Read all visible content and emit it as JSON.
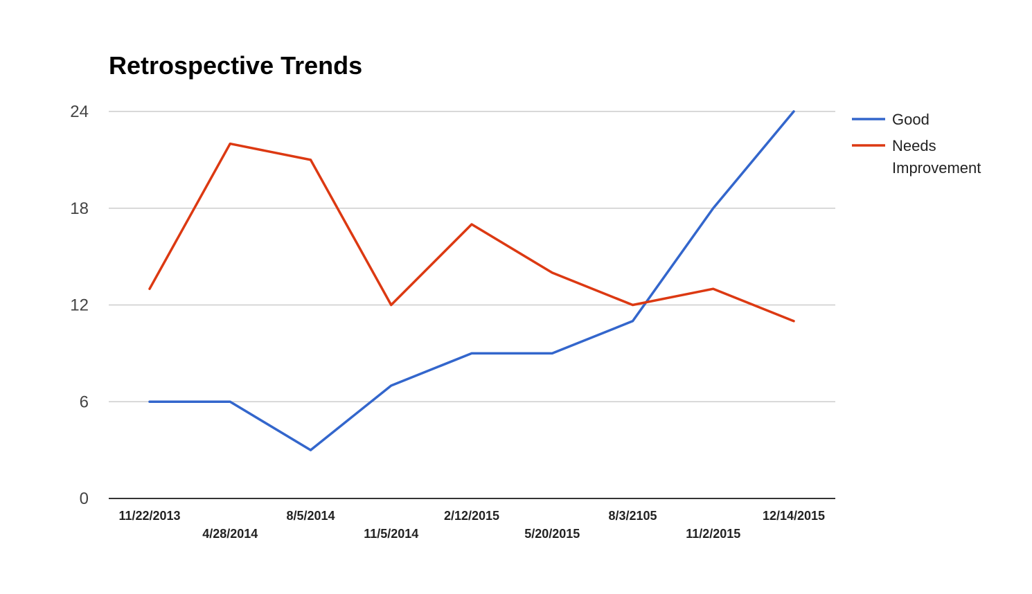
{
  "chart_data": {
    "type": "line",
    "title": "Retrospective Trends",
    "xlabel": "",
    "ylabel": "",
    "categories": [
      "11/22/2013",
      "4/28/2014",
      "8/5/2014",
      "11/5/2014",
      "2/12/2015",
      "5/20/2015",
      "8/3/2105",
      "11/2/2015",
      "12/14/2015"
    ],
    "series": [
      {
        "name": "Good",
        "color": "#3366cc",
        "values": [
          6,
          6,
          3,
          7,
          9,
          9,
          11,
          18,
          24
        ]
      },
      {
        "name": "Needs Improvement",
        "color": "#dc3912",
        "values": [
          13,
          22,
          21,
          12,
          17,
          14,
          12,
          13,
          11
        ]
      }
    ],
    "ylim": [
      0,
      24
    ],
    "yticks": [
      0,
      6,
      12,
      18,
      24
    ],
    "grid": true,
    "legend_position": "right"
  }
}
